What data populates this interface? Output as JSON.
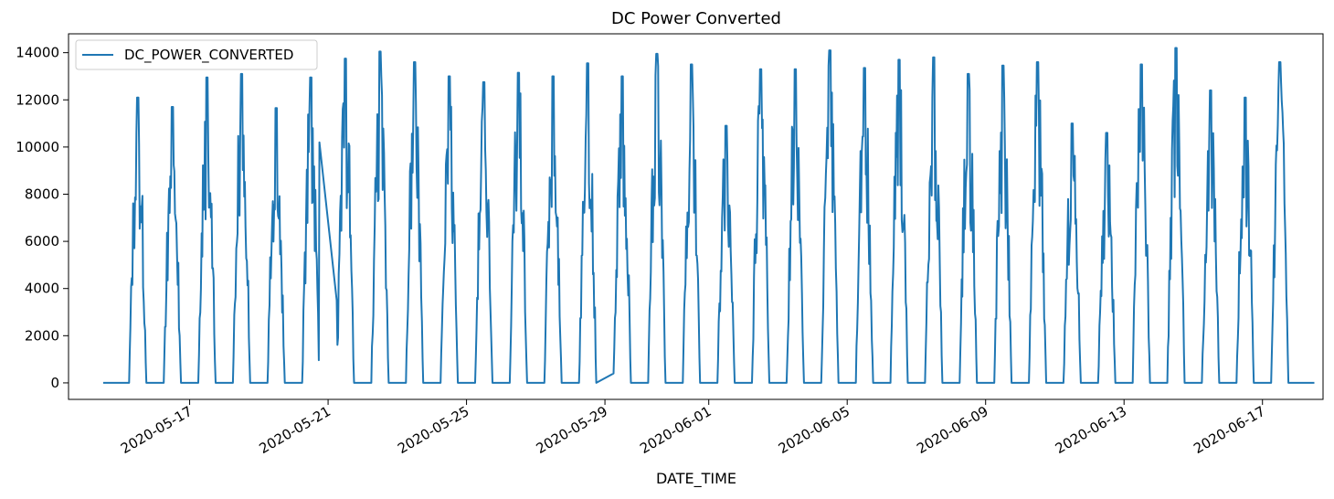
{
  "chart_data": {
    "type": "line",
    "title": "DC Power Converted",
    "xlabel": "DATE_TIME",
    "ylabel": "",
    "xlim": [
      "2020-05-13T12:00",
      "2020-06-18T18:00"
    ],
    "ylim": [
      -700,
      14800
    ],
    "y_ticks": [
      0,
      2000,
      4000,
      6000,
      8000,
      10000,
      12000,
      14000
    ],
    "x_ticks": [
      "2020-05-17",
      "2020-05-21",
      "2020-05-25",
      "2020-05-29",
      "2020-06-01",
      "2020-06-05",
      "2020-06-09",
      "2020-06-13",
      "2020-06-17"
    ],
    "legend": {
      "position": "upper-left",
      "entries": [
        "DC_POWER_CONVERTED"
      ]
    },
    "grid": false,
    "color": "#1f77b4",
    "series": [
      {
        "name": "DC_POWER_CONVERTED",
        "daily_peaks": [
          {
            "date": "2020-05-15",
            "peak": 12100
          },
          {
            "date": "2020-05-16",
            "peak": 11700
          },
          {
            "date": "2020-05-17",
            "peak": 12950
          },
          {
            "date": "2020-05-18",
            "peak": 13100
          },
          {
            "date": "2020-05-19",
            "peak": 11650
          },
          {
            "date": "2020-05-20",
            "peak": 12950
          },
          {
            "date": "2020-05-21",
            "peak": 13750
          },
          {
            "date": "2020-05-22",
            "peak": 14050
          },
          {
            "date": "2020-05-23",
            "peak": 13600
          },
          {
            "date": "2020-05-24",
            "peak": 13000
          },
          {
            "date": "2020-05-25",
            "peak": 12750
          },
          {
            "date": "2020-05-26",
            "peak": 13150
          },
          {
            "date": "2020-05-27",
            "peak": 13000
          },
          {
            "date": "2020-05-28",
            "peak": 13550
          },
          {
            "date": "2020-05-29",
            "peak": 13000
          },
          {
            "date": "2020-05-30",
            "peak": 13950
          },
          {
            "date": "2020-05-31",
            "peak": 13500
          },
          {
            "date": "2020-06-01",
            "peak": 10900
          },
          {
            "date": "2020-06-02",
            "peak": 13300
          },
          {
            "date": "2020-06-03",
            "peak": 13300
          },
          {
            "date": "2020-06-04",
            "peak": 14100
          },
          {
            "date": "2020-06-05",
            "peak": 13350
          },
          {
            "date": "2020-06-06",
            "peak": 13700
          },
          {
            "date": "2020-06-07",
            "peak": 13800
          },
          {
            "date": "2020-06-08",
            "peak": 13100
          },
          {
            "date": "2020-06-09",
            "peak": 13450
          },
          {
            "date": "2020-06-10",
            "peak": 13600
          },
          {
            "date": "2020-06-11",
            "peak": 11000
          },
          {
            "date": "2020-06-12",
            "peak": 10600
          },
          {
            "date": "2020-06-13",
            "peak": 13500
          },
          {
            "date": "2020-06-14",
            "peak": 14200
          },
          {
            "date": "2020-06-15",
            "peak": 12400
          },
          {
            "date": "2020-06-16",
            "peak": 12100
          },
          {
            "date": "2020-06-17",
            "peak": 13600
          }
        ],
        "night_value": 0,
        "gaps": [
          {
            "from": "2020-05-20T18:00",
            "to": "2020-05-21T06:00",
            "from_value": 10200,
            "to_value": 3500
          },
          {
            "from": "2020-05-28T18:00",
            "to": "2020-05-29T06:00",
            "from_value": 0,
            "to_value": 400
          }
        ]
      }
    ]
  }
}
